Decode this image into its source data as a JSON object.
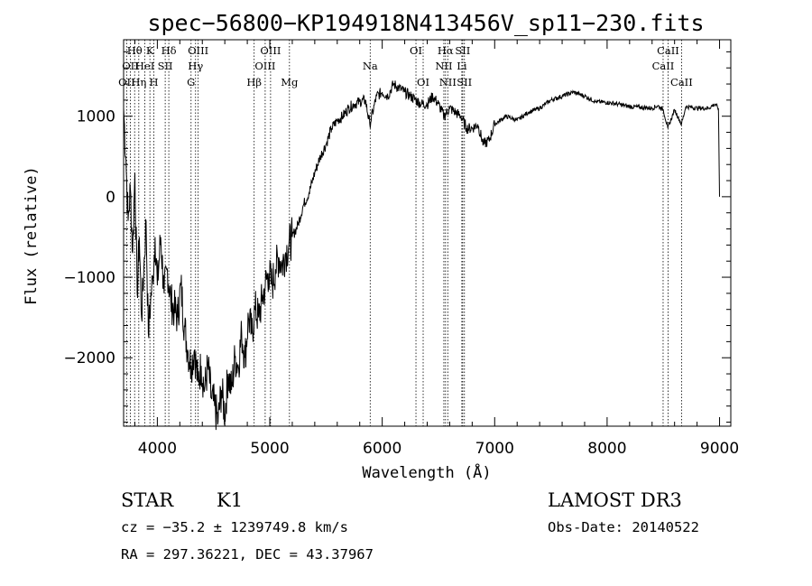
{
  "chart_data": {
    "type": "line",
    "title": "spec−56800−KP194918N413456V_sp11−230.fits",
    "xlabel": "Wavelength (Å)",
    "ylabel": "Flux (relative)",
    "xlim": [
      3700,
      9100
    ],
    "ylim": [
      -2850,
      1950
    ],
    "x_ticks": [
      4000,
      5000,
      6000,
      7000,
      8000,
      9000
    ],
    "x_tick_labels": [
      "4000",
      "5000",
      "6000",
      "7000",
      "8000",
      "9000"
    ],
    "y_ticks": [
      -2000,
      -1000,
      0,
      1000
    ],
    "y_tick_labels": [
      "−2000",
      "−1000",
      "0",
      "1000"
    ],
    "series": [
      {
        "x": [
          3700,
          3720,
          3740,
          3760,
          3780,
          3800,
          3820,
          3840,
          3860,
          3880,
          3900,
          3920,
          3940,
          3960,
          3980,
          4000,
          4030,
          4060,
          4090,
          4120,
          4150,
          4180,
          4210,
          4240,
          4270,
          4300,
          4330,
          4360,
          4390,
          4420,
          4450,
          4480,
          4510,
          4540,
          4570,
          4600,
          4630,
          4660,
          4690,
          4720,
          4750,
          4780,
          4810,
          4840,
          4870,
          4900,
          4930,
          4960,
          4990,
          5020,
          5050,
          5080,
          5110,
          5140,
          5170,
          5200,
          5250,
          5300,
          5350,
          5400,
          5450,
          5500,
          5550,
          5600,
          5650,
          5700,
          5750,
          5800,
          5850,
          5890,
          5950,
          6000,
          6050,
          6100,
          6150,
          6200,
          6250,
          6300,
          6350,
          6400,
          6450,
          6500,
          6550,
          6600,
          6650,
          6700,
          6750,
          6800,
          6850,
          6900,
          6950,
          7000,
          7100,
          7200,
          7300,
          7400,
          7500,
          7600,
          7700,
          7800,
          7900,
          8000,
          8100,
          8200,
          8300,
          8400,
          8450,
          8500,
          8540,
          8600,
          8662,
          8700,
          8800,
          8900,
          8960,
          8990,
          9000
        ],
        "y": [
          1100,
          500,
          -300,
          100,
          -700,
          300,
          -1200,
          -500,
          -1500,
          -900,
          -300,
          -1700,
          -1300,
          -1000,
          -500,
          -1100,
          -500,
          -1200,
          -900,
          -1300,
          -1400,
          -1500,
          -1100,
          -1600,
          -1900,
          -2100,
          -1900,
          -2300,
          -2100,
          -2400,
          -2100,
          -2500,
          -2600,
          -2800,
          -2400,
          -2700,
          -2200,
          -2400,
          -2000,
          -2100,
          -1700,
          -2000,
          -1500,
          -1700,
          -1400,
          -1500,
          -1300,
          -1100,
          -950,
          -1100,
          -900,
          -750,
          -850,
          -700,
          -600,
          -500,
          -350,
          -100,
          50,
          300,
          500,
          650,
          850,
          950,
          1000,
          1100,
          1150,
          1180,
          1200,
          900,
          1250,
          1300,
          1250,
          1400,
          1350,
          1300,
          1250,
          1200,
          1150,
          1150,
          1250,
          1150,
          1000,
          1100,
          1050,
          1000,
          850,
          850,
          900,
          650,
          700,
          900,
          1000,
          950,
          1050,
          1100,
          1200,
          1250,
          1300,
          1250,
          1180,
          1170,
          1150,
          1120,
          1110,
          1100,
          1130,
          1080,
          850,
          1080,
          900,
          1120,
          1100,
          1100,
          1150,
          1100,
          0
        ]
      }
    ],
    "lines": [
      {
        "w": 3727,
        "label": "OII",
        "row": 2
      },
      {
        "w": 3760,
        "label": "OII",
        "row": 1
      },
      {
        "w": 3798,
        "label": "Hθ",
        "row": 0
      },
      {
        "w": 3835,
        "label": "Hη",
        "row": 2
      },
      {
        "w": 3889,
        "label": "HeI",
        "row": 1
      },
      {
        "w": 3934,
        "label": "K",
        "row": 0
      },
      {
        "w": 3969,
        "label": "H",
        "row": 2
      },
      {
        "w": 4070,
        "label": "SII",
        "row": 1
      },
      {
        "w": 4102,
        "label": "Hδ",
        "row": 0
      },
      {
        "w": 4300,
        "label": "G",
        "row": 2
      },
      {
        "w": 4340,
        "label": "Hγ",
        "row": 1
      },
      {
        "w": 4363,
        "label": "OIII",
        "row": 0
      },
      {
        "w": 4861,
        "label": "Hβ",
        "row": 2
      },
      {
        "w": 4959,
        "label": "OIII",
        "row": 1
      },
      {
        "w": 5007,
        "label": "OIII",
        "row": 0
      },
      {
        "w": 5175,
        "label": "Mg",
        "row": 2
      },
      {
        "w": 5893,
        "label": "Na",
        "row": 1
      },
      {
        "w": 6300,
        "label": "OI",
        "row": 0
      },
      {
        "w": 6364,
        "label": "OI",
        "row": 2
      },
      {
        "w": 6548,
        "label": "NII",
        "row": 1
      },
      {
        "w": 6563,
        "label": "Hα",
        "row": 0
      },
      {
        "w": 6583,
        "label": "NII",
        "row": 2
      },
      {
        "w": 6708,
        "label": "Li",
        "row": 1
      },
      {
        "w": 6716,
        "label": "SII",
        "row": 0
      },
      {
        "w": 6731,
        "label": "SII",
        "row": 2
      },
      {
        "w": 8498,
        "label": "CaII",
        "row": 1
      },
      {
        "w": 8542,
        "label": "CaII",
        "row": 0
      },
      {
        "w": 8662,
        "label": "CaII",
        "row": 2
      }
    ]
  },
  "info": {
    "class": "STAR",
    "subclass": "K1",
    "survey": "LAMOST DR3",
    "cz": "cz = −35.2 ± 1239749.8 km/s",
    "obsdate": "Obs-Date: 20140522",
    "radec": "RA = 297.36221, DEC =  43.37967"
  }
}
